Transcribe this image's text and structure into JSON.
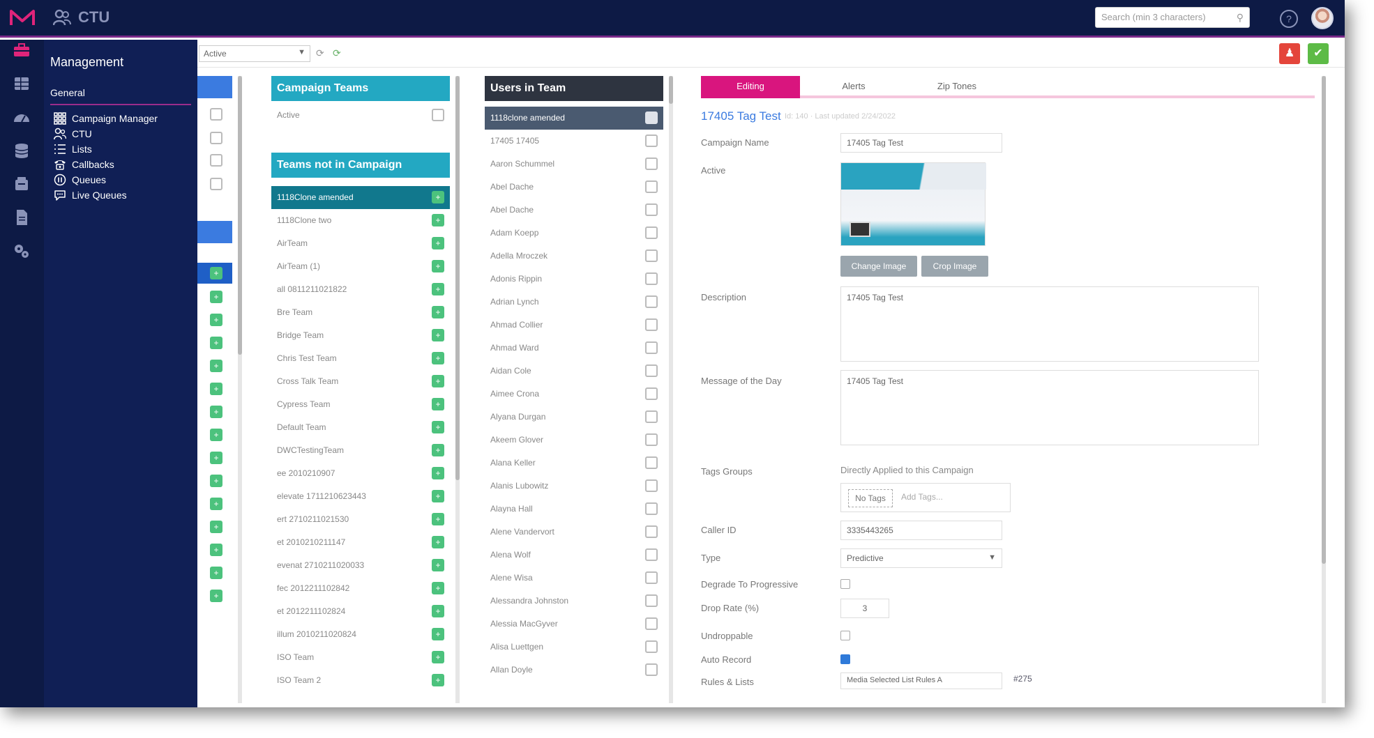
{
  "app": {
    "title": "CTU"
  },
  "search": {
    "placeholder": "Search (min 3 characters)"
  },
  "flyout": {
    "title": "Management",
    "section": "General",
    "items": [
      {
        "label": "Campaign Manager",
        "icon": "grid-icon"
      },
      {
        "label": "CTU",
        "icon": "users-icon"
      },
      {
        "label": "Lists",
        "icon": "list-icon"
      },
      {
        "label": "Callbacks",
        "icon": "phone-icon"
      },
      {
        "label": "Queues",
        "icon": "pause-circle-icon"
      },
      {
        "label": "Live Queues",
        "icon": "chat-icon"
      }
    ]
  },
  "subbar": {
    "status_value": "Active"
  },
  "campaign_teams": {
    "header": "Campaign Teams",
    "rows": [
      "Active"
    ]
  },
  "teams_not_in_campaign": {
    "header": "Teams not in Campaign",
    "rows": [
      "1118Clone amended",
      "1118Clone two",
      "AirTeam",
      "AirTeam (1)",
      "all 0811211021822",
      "Bre Team",
      "Bridge Team",
      "Chris Test Team",
      "Cross Talk Team",
      "Cypress Team",
      "Default Team",
      "DWCTestingTeam",
      "ee 2010210907",
      "elevate 1711210623443",
      "ert 2710211021530",
      "et 2010210211147",
      "evenat 2710211020033",
      "fec 2012211102842",
      "et 2012211102824",
      "illum 2010211020824",
      "ISO Team",
      "ISO Team 2"
    ]
  },
  "users_in_team": {
    "header": "Users in Team",
    "rows": [
      "1118clone amended",
      "17405 17405",
      "Aaron Schummel",
      "Abel Dache",
      "Abel Dache",
      "Adam Koepp",
      "Adella Mroczek",
      "Adonis Rippin",
      "Adrian Lynch",
      "Ahmad Collier",
      "Ahmad Ward",
      "Aidan Cole",
      "Aimee Crona",
      "Alyana Durgan",
      "Akeem Glover",
      "Alana Keller",
      "Alanis Lubowitz",
      "Alayna Hall",
      "Alene Vandervort",
      "Alena Wolf",
      "Alene Wisa",
      "Alessandra Johnston",
      "Alessia MacGyver",
      "Alisa Luettgen",
      "Allan Doyle"
    ]
  },
  "editor": {
    "tabs": [
      "Editing",
      "Alerts",
      "Zip Tones"
    ],
    "title": "17405 Tag Test",
    "subtitle": "Id: 140 · Last updated 2/24/2022",
    "labels": {
      "campaign_name": "Campaign Name",
      "active": "Active",
      "description": "Description",
      "motd": "Message of the Day",
      "tags_groups": "Tags Groups",
      "caller_id": "Caller ID",
      "type": "Type",
      "degrade": "Degrade To Progressive",
      "drop_rate": "Drop Rate (%)",
      "undroppable": "Undroppable",
      "auto_record": "Auto Record",
      "rules": "Rules & Lists"
    },
    "values": {
      "campaign_name": "17405 Tag Test",
      "description": "17405 Tag Test",
      "motd": "17405 Tag Test",
      "caller_id": "3335443265",
      "type": "Predictive",
      "drop_rate": "3",
      "rules": "Media Selected List Rules A"
    },
    "applied_note": "Directly Applied to this Campaign",
    "tag_chip": "No Tags",
    "tag_add_placeholder": "Add Tags...",
    "change_image": "Change Image",
    "crop_image": "Crop Image",
    "pct_badge": "#275",
    "active_checked": true,
    "degrade_checked": false,
    "undroppable_checked": false,
    "auto_record_checked": true
  },
  "colors": {
    "topbar": "#0d1a45",
    "accent_pink": "#d9157e",
    "teal": "#23a8c2",
    "green": "#4cc27d",
    "red": "#e4453b"
  }
}
